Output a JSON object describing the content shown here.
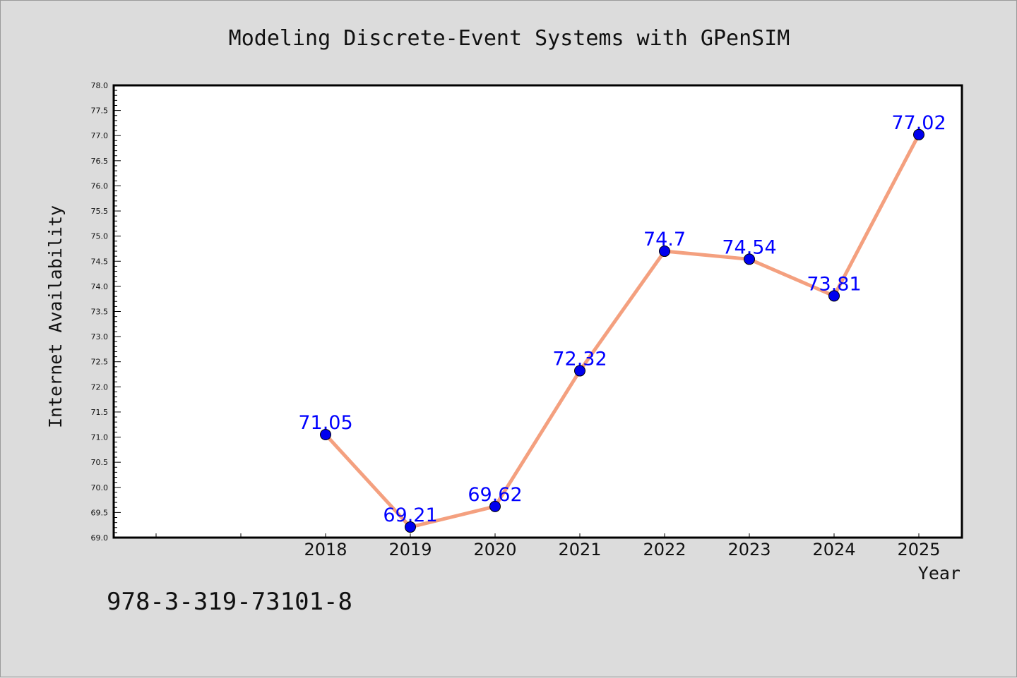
{
  "chart_data": {
    "type": "line",
    "title": "Modeling Discrete-Event Systems with GPenSIM",
    "xlabel": "Year",
    "ylabel": "Internet Availability",
    "categories": [
      "2018",
      "2019",
      "2020",
      "2021",
      "2022",
      "2023",
      "2024",
      "2025"
    ],
    "values": [
      71.05,
      69.21,
      69.62,
      72.32,
      74.7,
      74.54,
      73.81,
      77.02
    ],
    "data_labels": [
      "71.05",
      "69.21",
      "69.62",
      "72.32",
      "74.7",
      "74.54",
      "73.81",
      "77.02"
    ],
    "ylim": [
      69.0,
      78.0
    ],
    "y_ticks": [
      "69.0",
      "69.5",
      "70.0",
      "70.5",
      "71.0",
      "71.5",
      "72.0",
      "72.5",
      "73.0",
      "73.5",
      "74.0",
      "74.5",
      "75.0",
      "75.5",
      "76.0",
      "76.5",
      "77.0",
      "77.5",
      "78.0"
    ],
    "grid": false,
    "colors": {
      "line": "#f4a07f",
      "marker": "#0000ee",
      "label": "#0000ff"
    }
  },
  "footer_text": "978-3-319-73101-8"
}
